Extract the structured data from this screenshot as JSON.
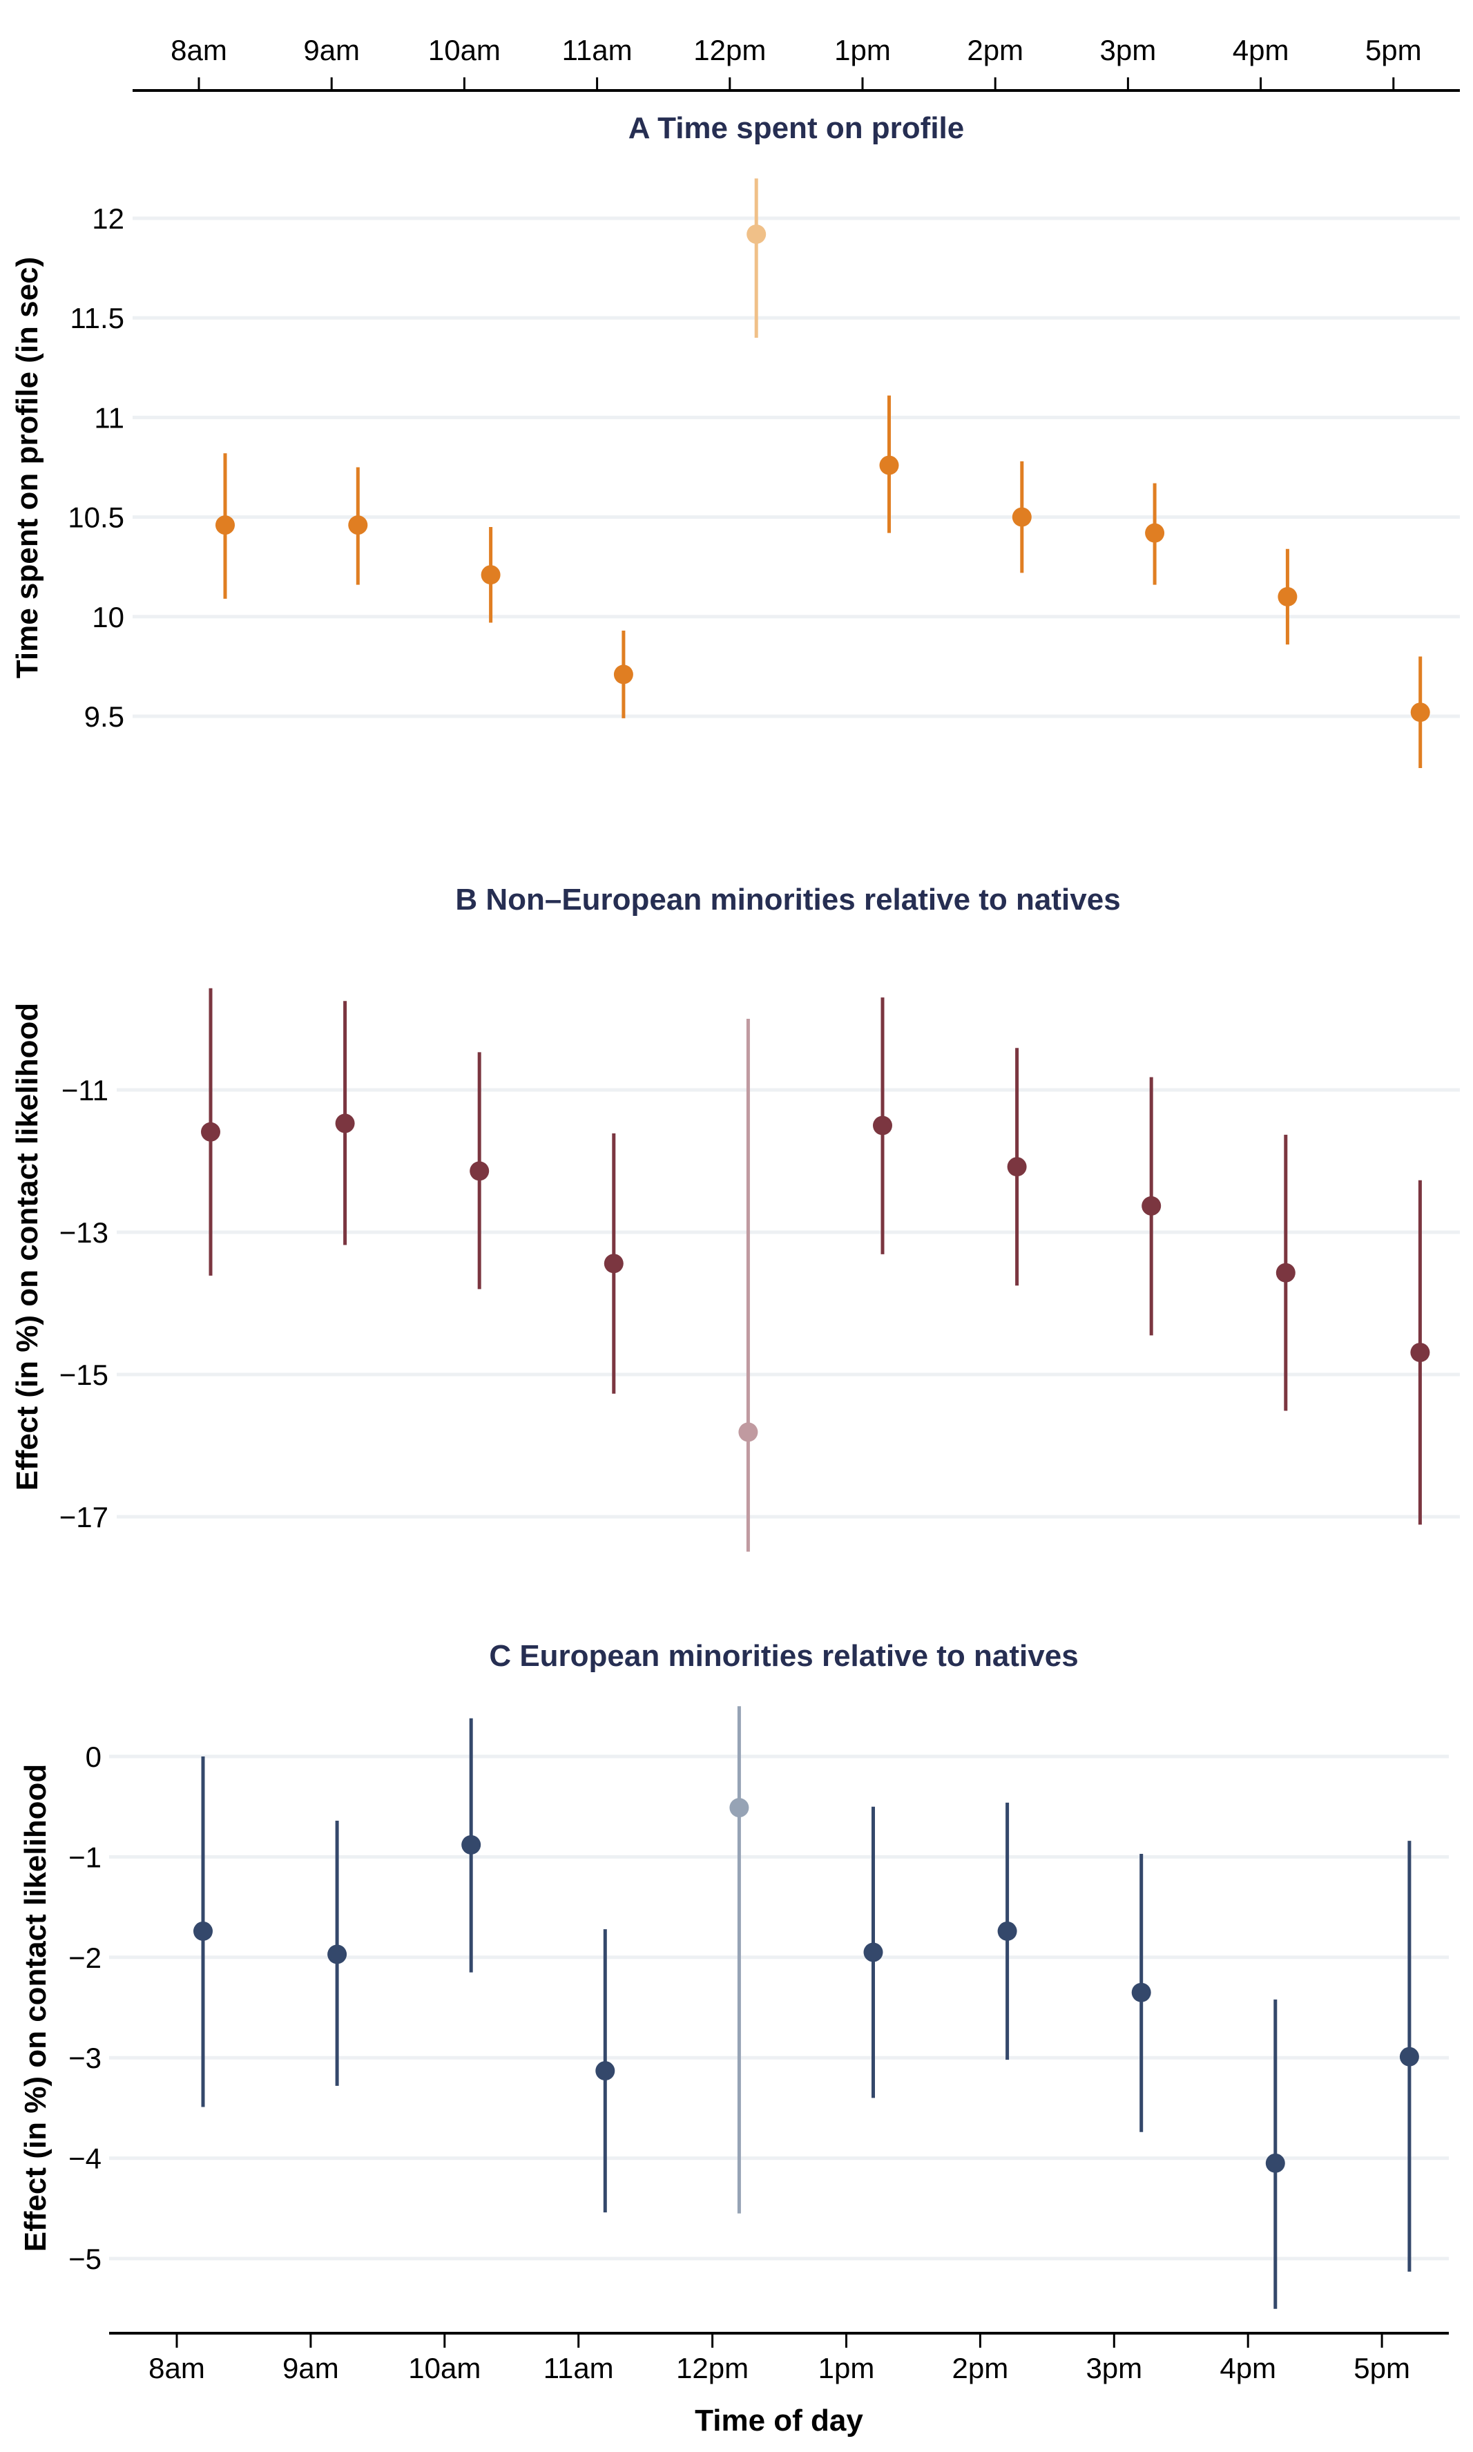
{
  "chart_data": [
    {
      "id": "A",
      "type": "scatter",
      "subtype": "point-range",
      "title": "A Time spent on profile",
      "xlabel": "",
      "ylabel": "Time spent on profile (in sec)",
      "categories": [
        "8am",
        "9am",
        "10am",
        "11am",
        "12pm",
        "1pm",
        "2pm",
        "3pm",
        "4pm",
        "5pm"
      ],
      "yticks": [
        9.5,
        10,
        10.5,
        11,
        11.5,
        12
      ],
      "ytick_labels": [
        "9.5",
        "10",
        "10.5",
        "11",
        "11.5",
        "12"
      ],
      "grid": true,
      "color": "#e07e22",
      "highlight_color": "#f0c088",
      "highlight_category": "12pm",
      "estimates": [
        10.46,
        10.46,
        10.21,
        9.71,
        11.92,
        10.76,
        10.5,
        10.42,
        10.1,
        9.52
      ],
      "ci_lower": [
        10.09,
        10.16,
        9.97,
        9.49,
        11.4,
        10.42,
        10.22,
        10.16,
        9.86,
        9.24
      ],
      "ci_upper": [
        10.82,
        10.75,
        10.45,
        9.93,
        12.2,
        11.11,
        10.78,
        10.67,
        10.34,
        9.8
      ]
    },
    {
      "id": "B",
      "type": "scatter",
      "subtype": "point-range",
      "title": "B Non–European minorities relative to natives",
      "xlabel": "",
      "ylabel": "Effect (in %) on contact likelihood",
      "categories": [
        "8am",
        "9am",
        "10am",
        "11am",
        "12pm",
        "1pm",
        "2pm",
        "3pm",
        "4pm",
        "5pm"
      ],
      "yticks": [
        -17,
        -15,
        -13,
        -11
      ],
      "ytick_labels": [
        "−17",
        "−15",
        "−13",
        "−11"
      ],
      "grid": true,
      "color": "#7b3640",
      "highlight_color": "#c09aa0",
      "highlight_category": "12pm",
      "estimates": [
        -11.59,
        -11.47,
        -12.14,
        -13.44,
        -15.81,
        -11.5,
        -12.08,
        -12.63,
        -13.57,
        -14.69
      ],
      "ci_lower": [
        -13.61,
        -13.18,
        -13.8,
        -15.27,
        -17.49,
        -13.31,
        -13.75,
        -14.45,
        -15.51,
        -17.11
      ],
      "ci_upper": [
        -9.57,
        -9.75,
        -10.47,
        -11.61,
        -10.0,
        -9.7,
        -10.41,
        -10.82,
        -11.63,
        -12.27
      ]
    },
    {
      "id": "C",
      "type": "scatter",
      "subtype": "point-range",
      "title": "C European minorities relative to natives",
      "xlabel": "Time of day",
      "ylabel": "Effect (in %) on contact likelihood",
      "categories": [
        "8am",
        "9am",
        "10am",
        "11am",
        "12pm",
        "1pm",
        "2pm",
        "3pm",
        "4pm",
        "5pm"
      ],
      "yticks": [
        -5,
        -4,
        -3,
        -2,
        -1,
        0
      ],
      "ytick_labels": [
        "−5",
        "−4",
        "−3",
        "−2",
        "−1",
        "0"
      ],
      "grid": true,
      "color": "#34486b",
      "highlight_color": "#96a3b5",
      "highlight_category": "12pm",
      "estimates": [
        -1.74,
        -1.97,
        -0.88,
        -3.13,
        -0.51,
        -1.95,
        -1.74,
        -2.35,
        -4.05,
        -2.99
      ],
      "ci_lower": [
        -3.49,
        -3.28,
        -2.15,
        -4.54,
        -4.55,
        -3.4,
        -3.02,
        -3.74,
        -5.5,
        -5.13
      ],
      "ci_upper": [
        0.0,
        -0.64,
        0.38,
        -1.72,
        0.5,
        -0.5,
        -0.46,
        -0.97,
        -2.42,
        -0.84
      ]
    }
  ],
  "axes": {
    "top_tick_labels": [
      "8am",
      "9am",
      "10am",
      "11am",
      "12pm",
      "1pm",
      "2pm",
      "3pm",
      "4pm",
      "5pm"
    ],
    "bottom_tick_labels": [
      "8am",
      "9am",
      "10am",
      "11am",
      "12pm",
      "1pm",
      "2pm",
      "3pm",
      "4pm",
      "5pm"
    ],
    "bottom_title": "Time of day"
  }
}
